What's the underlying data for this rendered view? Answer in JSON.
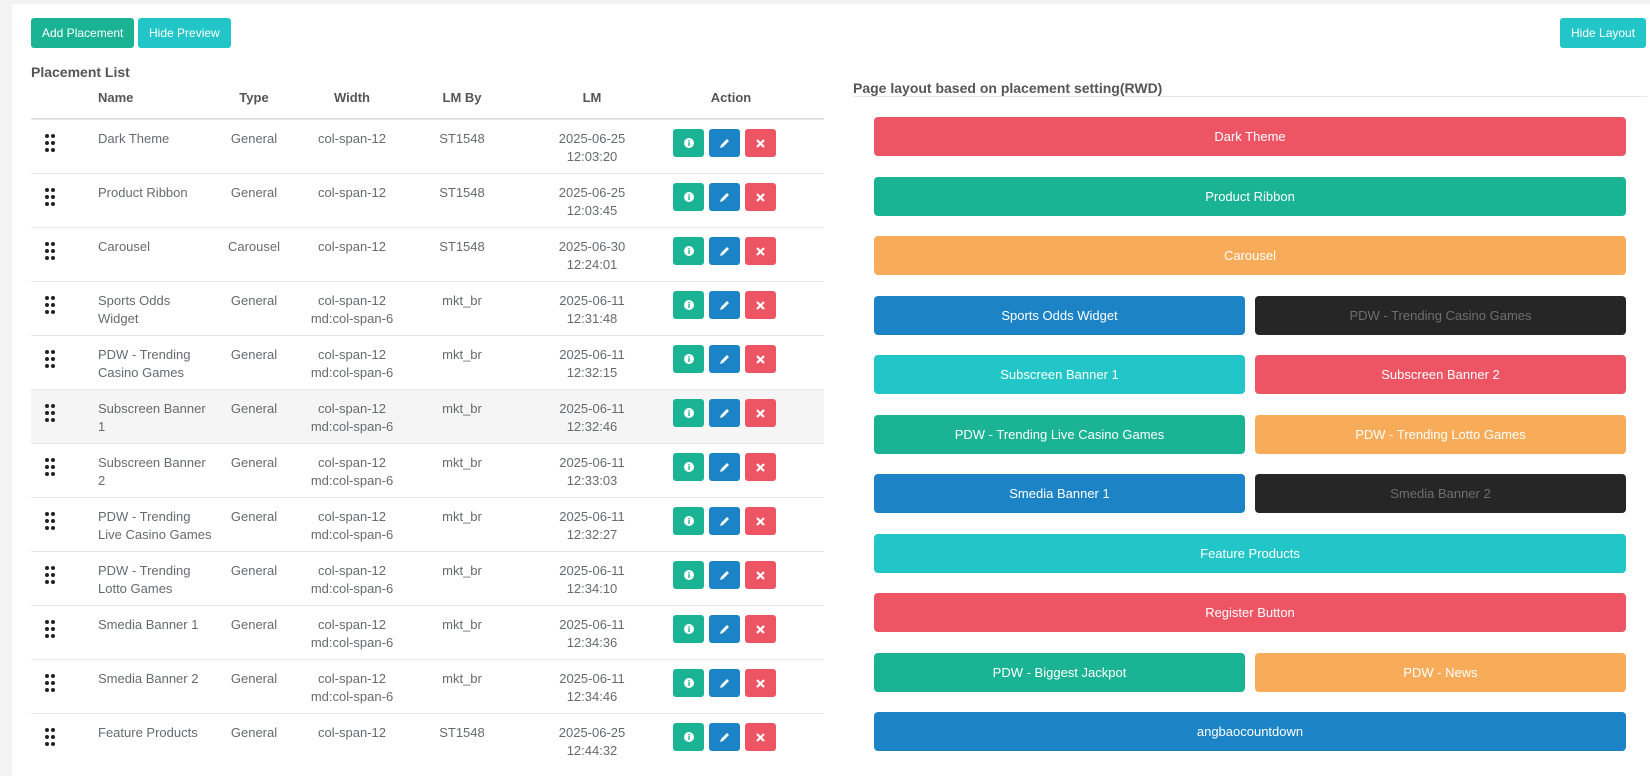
{
  "toolbar": {
    "add_placement": "Add Placement",
    "hide_preview": "Hide Preview",
    "hide_layout": "Hide Layout"
  },
  "list": {
    "title": "Placement List",
    "columns": [
      "Name",
      "Type",
      "Width",
      "LM By",
      "LM",
      "Action"
    ],
    "rows": [
      {
        "name": "Dark Theme",
        "type": "General",
        "width": "col-span-12",
        "lm_by": "ST1548",
        "lm": "2025-06-25 12:03:20"
      },
      {
        "name": "Product Ribbon",
        "type": "General",
        "width": "col-span-12",
        "lm_by": "ST1548",
        "lm": "2025-06-25 12:03:45"
      },
      {
        "name": "Carousel",
        "type": "Carousel",
        "width": "col-span-12",
        "lm_by": "ST1548",
        "lm": "2025-06-30 12:24:01"
      },
      {
        "name": "Sports Odds Widget",
        "type": "General",
        "width": "col-span-12 md:col-span-6",
        "lm_by": "mkt_br",
        "lm": "2025-06-11 12:31:48"
      },
      {
        "name": "PDW - Trending Casino Games",
        "type": "General",
        "width": "col-span-12 md:col-span-6",
        "lm_by": "mkt_br",
        "lm": "2025-06-11 12:32:15"
      },
      {
        "name": "Subscreen Banner 1",
        "type": "General",
        "width": "col-span-12 md:col-span-6",
        "lm_by": "mkt_br",
        "lm": "2025-06-11 12:32:46"
      },
      {
        "name": "Subscreen Banner 2",
        "type": "General",
        "width": "col-span-12 md:col-span-6",
        "lm_by": "mkt_br",
        "lm": "2025-06-11 12:33:03"
      },
      {
        "name": "PDW - Trending Live Casino Games",
        "type": "General",
        "width": "col-span-12 md:col-span-6",
        "lm_by": "mkt_br",
        "lm": "2025-06-11 12:32:27"
      },
      {
        "name": "PDW - Trending Lotto Games",
        "type": "General",
        "width": "col-span-12 md:col-span-6",
        "lm_by": "mkt_br",
        "lm": "2025-06-11 12:34:10"
      },
      {
        "name": "Smedia Banner 1",
        "type": "General",
        "width": "col-span-12 md:col-span-6",
        "lm_by": "mkt_br",
        "lm": "2025-06-11 12:34:36"
      },
      {
        "name": "Smedia Banner 2",
        "type": "General",
        "width": "col-span-12 md:col-span-6",
        "lm_by": "mkt_br",
        "lm": "2025-06-11 12:34:46"
      },
      {
        "name": "Feature Products",
        "type": "General",
        "width": "col-span-12",
        "lm_by": "ST1548",
        "lm": "2025-06-25 12:44:32"
      }
    ]
  },
  "layout": {
    "title": "Page layout based on placement setting(RWD)",
    "rows": [
      [
        {
          "label": "Dark Theme",
          "color": "#ed5565"
        }
      ],
      [
        {
          "label": "Product Ribbon",
          "color": "#1ab394"
        }
      ],
      [
        {
          "label": "Carousel",
          "color": "#f8ac59"
        }
      ],
      [
        {
          "label": "Sports Odds Widget",
          "color": "#1c84c6"
        },
        {
          "label": "PDW - Trending Casino Games",
          "color": "#262626"
        }
      ],
      [
        {
          "label": "Subscreen Banner 1",
          "color": "#23c6c8"
        },
        {
          "label": "Subscreen Banner 2",
          "color": "#ed5565"
        }
      ],
      [
        {
          "label": "PDW - Trending Live Casino Games",
          "color": "#1ab394"
        },
        {
          "label": "PDW - Trending Lotto Games",
          "color": "#f8ac59"
        }
      ],
      [
        {
          "label": "Smedia Banner 1",
          "color": "#1c84c6"
        },
        {
          "label": "Smedia Banner 2",
          "color": "#262626"
        }
      ],
      [
        {
          "label": "Feature Products",
          "color": "#23c6c8"
        }
      ],
      [
        {
          "label": "Register Button",
          "color": "#ed5565"
        }
      ],
      [
        {
          "label": "PDW - Biggest Jackpot",
          "color": "#1ab394"
        },
        {
          "label": "PDW - News",
          "color": "#f8ac59"
        }
      ],
      [
        {
          "label": "angbaocountdown",
          "color": "#1c84c6"
        }
      ]
    ]
  }
}
